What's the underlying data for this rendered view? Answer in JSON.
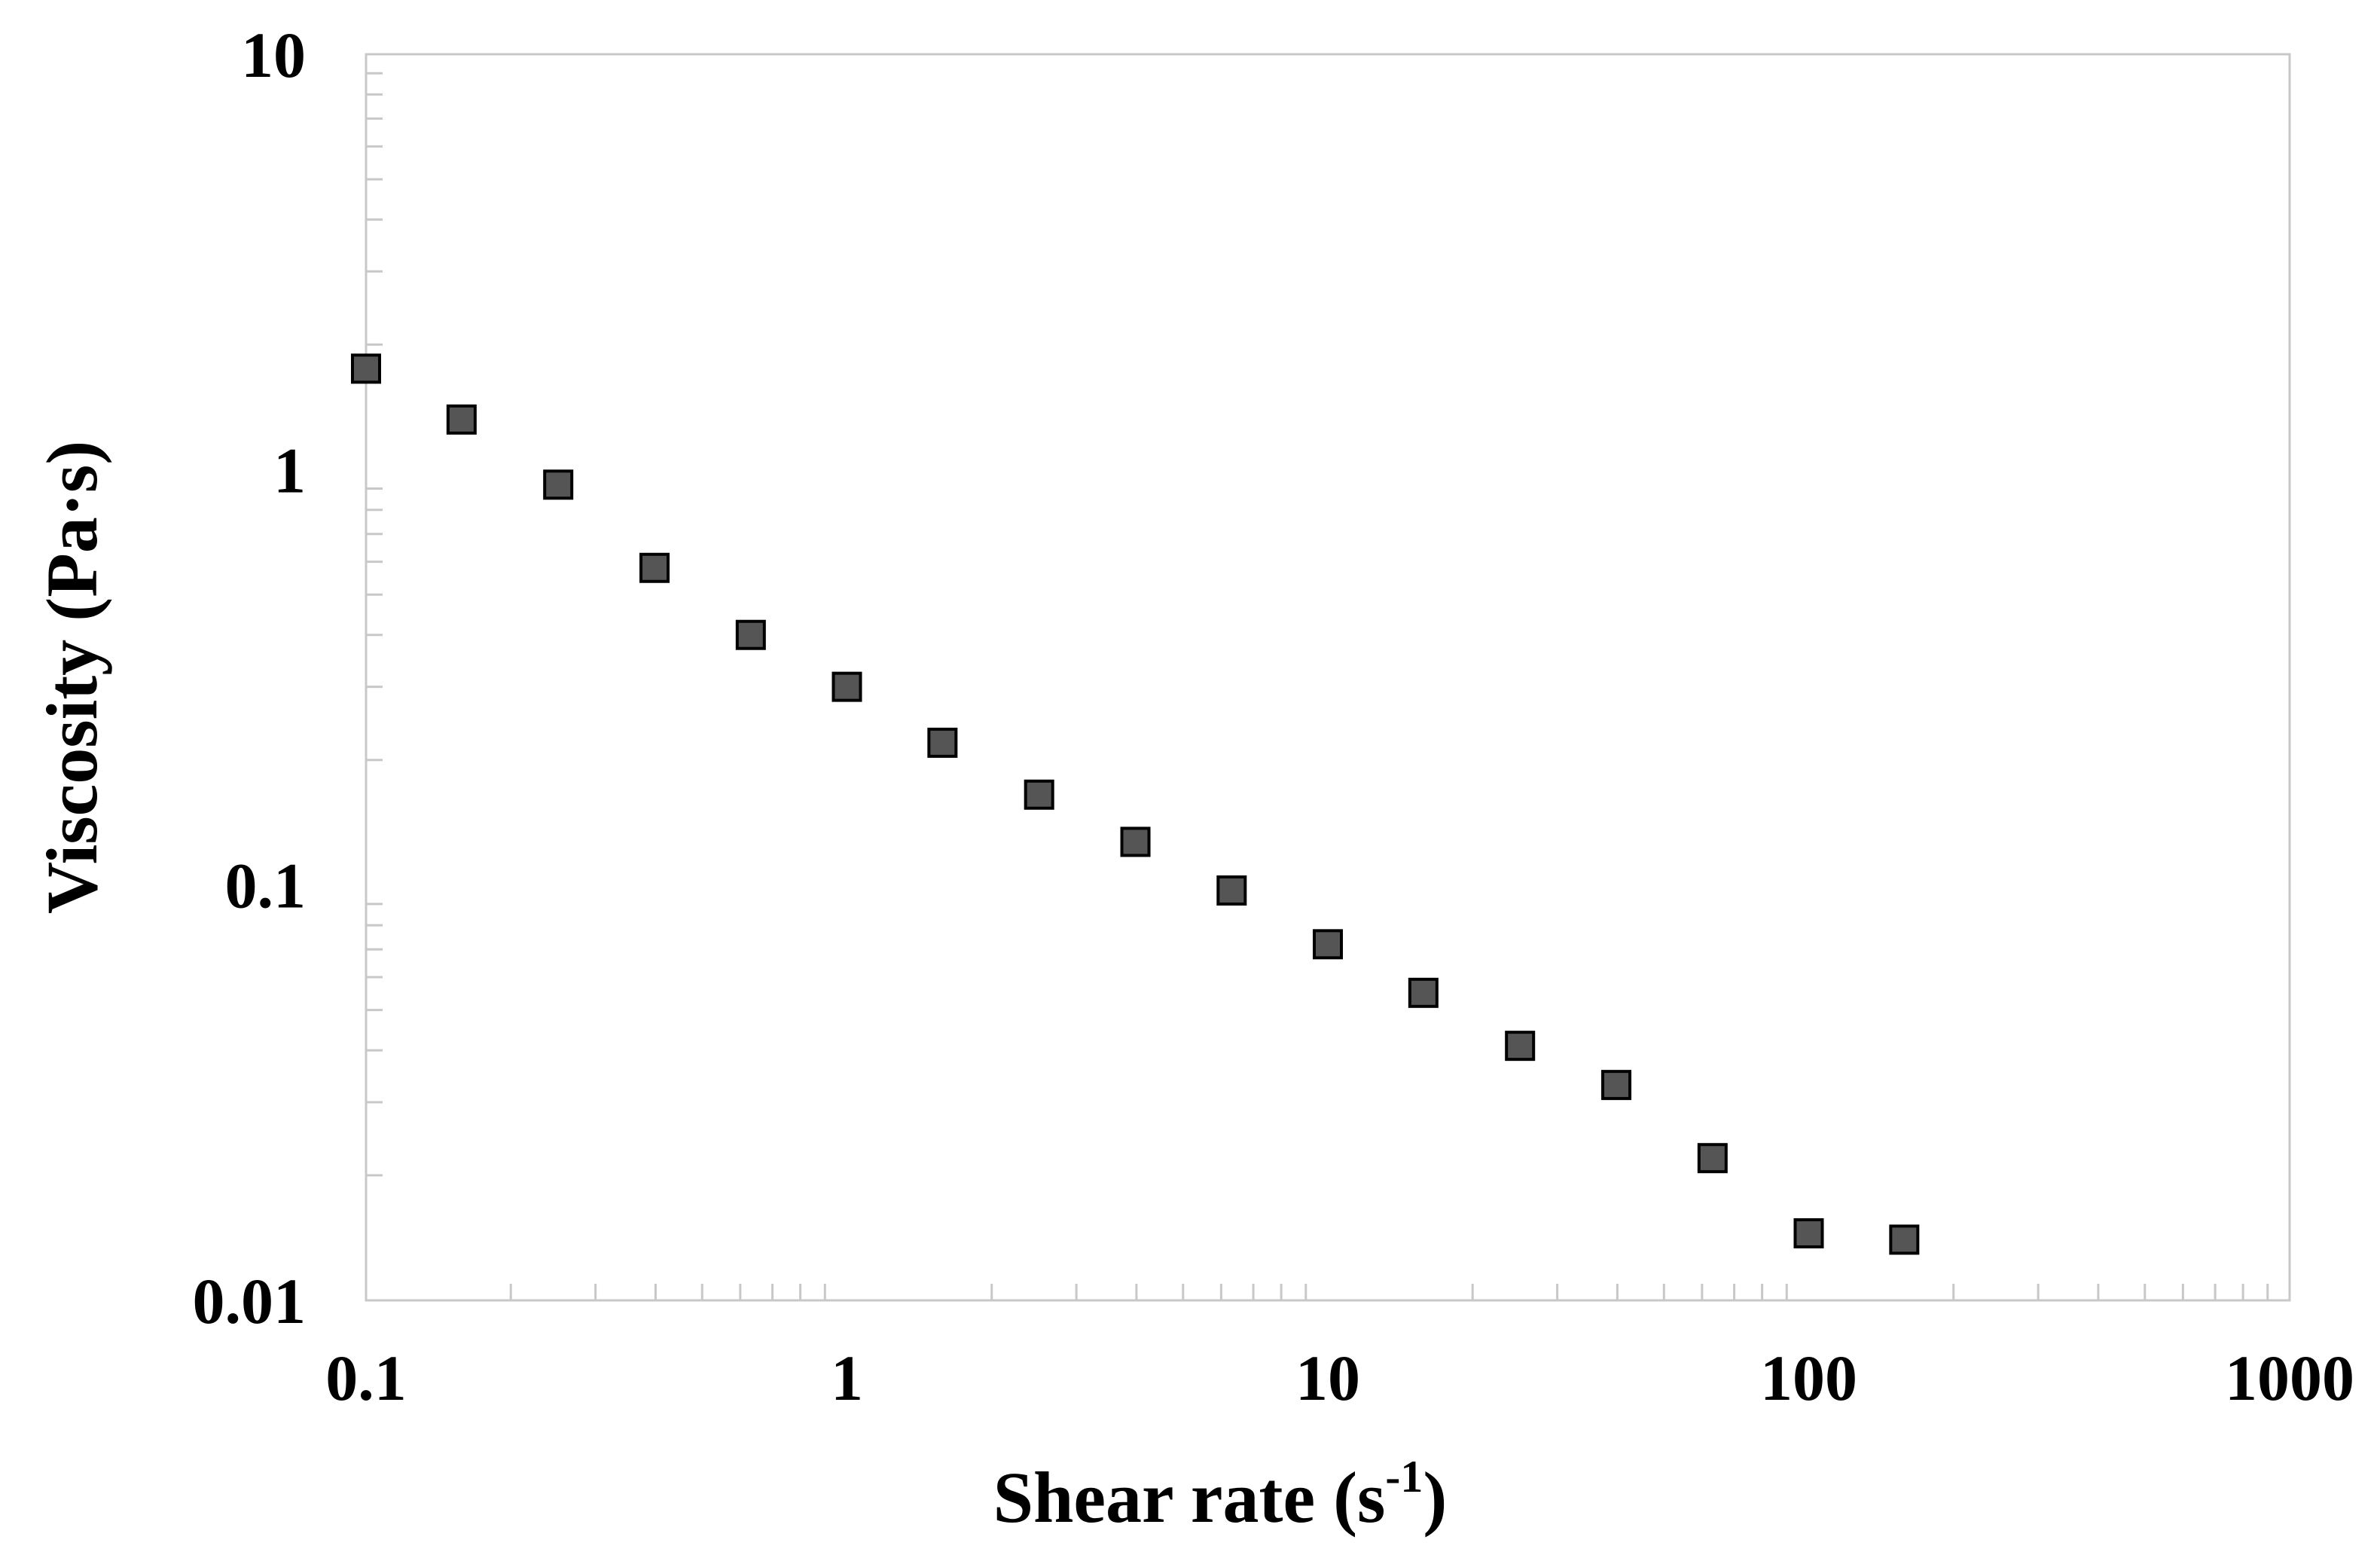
{
  "colors": {
    "frame": "#c8c8c8",
    "marker_fill": "#555555",
    "marker_stroke": "#000000",
    "text": "#000000"
  },
  "chart_data": {
    "type": "scatter",
    "title": "",
    "xlabel": {
      "main": "Shear rate (s",
      "superscript": "-1",
      "close": ")"
    },
    "ylabel": "Viscosity (Pa·s)",
    "xscale": "log",
    "yscale": "log",
    "xlim": [
      0.1,
      1000
    ],
    "ylim": [
      0.01,
      10
    ],
    "x_tick_labels": [
      {
        "value": 0.1,
        "label": "0.1"
      },
      {
        "value": 1,
        "label": "1"
      },
      {
        "value": 10,
        "label": "10"
      },
      {
        "value": 100,
        "label": "100"
      },
      {
        "value": 1000,
        "label": "1000"
      }
    ],
    "y_tick_labels": [
      {
        "value": 0.01,
        "label": "0.01"
      },
      {
        "value": 0.1,
        "label": "0.1"
      },
      {
        "value": 1,
        "label": "1"
      },
      {
        "value": 10,
        "label": "10"
      }
    ],
    "grid": false,
    "legend": null,
    "marker": "square",
    "series": [
      {
        "name": "viscosity",
        "x": [
          0.1,
          0.158,
          0.251,
          0.398,
          0.631,
          1.0,
          1.58,
          2.51,
          3.98,
          6.31,
          10.0,
          15.8,
          25.1,
          39.8,
          63.1,
          100,
          158
        ],
        "y": [
          1.75,
          1.32,
          0.92,
          0.58,
          0.4,
          0.3,
          0.22,
          0.165,
          0.127,
          0.097,
          0.072,
          0.055,
          0.041,
          0.033,
          0.022,
          0.0145,
          0.014
        ]
      }
    ]
  }
}
